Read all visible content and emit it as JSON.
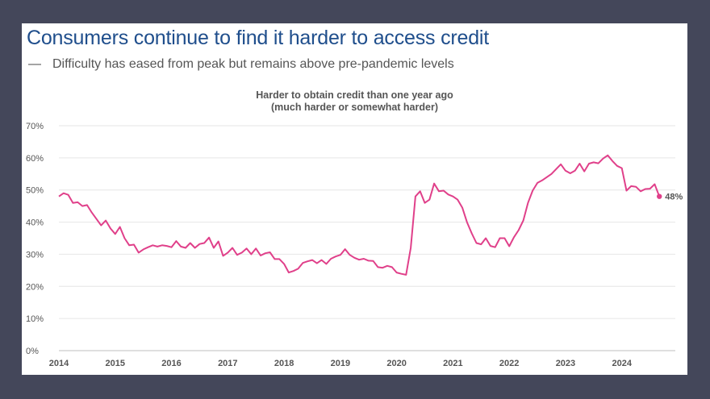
{
  "slide": {
    "title": "Consumers continue to find it harder to access credit",
    "subtitle_dash": "—",
    "subtitle": "Difficulty has eased from peak but remains above pre-pandemic levels"
  },
  "colors": {
    "line": "#e0408a",
    "grid": "#e6e6e6",
    "title": "#1f4e8c"
  },
  "chart_data": {
    "type": "line",
    "title_line1": "Harder to obtain credit than one year ago",
    "title_line2": "(much harder or somewhat harder)",
    "ylim": [
      0,
      70
    ],
    "yticks": [
      "0%",
      "10%",
      "20%",
      "30%",
      "40%",
      "50%",
      "60%",
      "70%"
    ],
    "xticks": [
      "2014",
      "2015",
      "2016",
      "2017",
      "2018",
      "2019",
      "2020",
      "2021",
      "2022",
      "2023",
      "2024"
    ],
    "series": [
      {
        "name": "Harder to obtain credit",
        "x_start": 2014.0,
        "x_step": 0.0833333,
        "values": [
          48,
          49,
          48.5,
          46,
          46.2,
          45,
          45.3,
          43,
          41,
          39,
          40.5,
          38,
          36.3,
          38.5,
          35,
          32.8,
          33,
          30.5,
          31.5,
          32.2,
          32.8,
          32.4,
          32.8,
          32.6,
          32.2,
          34.1,
          32.4,
          32.0,
          33.5,
          32.0,
          33.2,
          33.5,
          35.2,
          32.0,
          34.0,
          29.5,
          30.5,
          32.0,
          29.8,
          30.5,
          31.8,
          30.0,
          31.8,
          29.6,
          30.3,
          30.6,
          28.5,
          28.5,
          27.0,
          24.3,
          24.8,
          25.5,
          27.3,
          27.8,
          28.2,
          27.2,
          28.2,
          27.0,
          28.6,
          29.3,
          29.8,
          31.6,
          29.8,
          28.9,
          28.3,
          28.6,
          28.0,
          27.9,
          26.0,
          25.8,
          26.4,
          26.0,
          24.3,
          23.9,
          23.6,
          32.0,
          48.0,
          49.6,
          46.0,
          47.0,
          52.0,
          49.6,
          49.8,
          48.6,
          48.0,
          47.0,
          44.5,
          40.0,
          36.5,
          33.5,
          33.1,
          35.0,
          32.6,
          32.2,
          35.0,
          35.0,
          32.5,
          35.3,
          37.5,
          40.5,
          46.0,
          49.8,
          52.2,
          53.0,
          54.0,
          55.0,
          56.5,
          58.0,
          56.0,
          55.2,
          56.0,
          58.2,
          55.8,
          58.2,
          58.6,
          58.3,
          59.8,
          60.8,
          59.0,
          57.5,
          56.8,
          49.8,
          51.2,
          51.0,
          49.6,
          50.3,
          50.4,
          51.8,
          48.0
        ],
        "end_label": "48%",
        "end_value": 48
      }
    ]
  }
}
